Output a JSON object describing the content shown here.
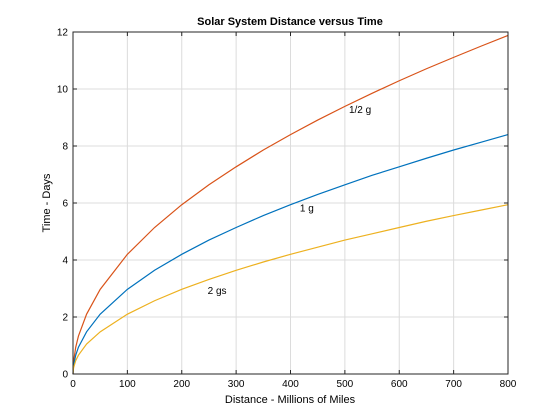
{
  "chart_data": {
    "type": "line",
    "title": "Solar System Distance versus Time",
    "xlabel": "Distance - Millions of Miles",
    "ylabel": "Time - Days",
    "xlim": [
      0,
      800
    ],
    "ylim": [
      0,
      12
    ],
    "x_ticks": [
      0,
      100,
      200,
      300,
      400,
      500,
      600,
      700,
      800
    ],
    "y_ticks": [
      0,
      2,
      4,
      6,
      8,
      10,
      12
    ],
    "grid": true,
    "x": [
      0,
      1,
      5,
      10,
      25,
      50,
      100,
      150,
      200,
      250,
      300,
      350,
      400,
      450,
      500,
      550,
      600,
      650,
      700,
      750,
      800
    ],
    "series": [
      {
        "name": "1/2 g",
        "color": "#d95319",
        "values": [
          0,
          0.42,
          0.94,
          1.33,
          2.1,
          2.97,
          4.2,
          5.14,
          5.94,
          6.64,
          7.27,
          7.86,
          8.4,
          8.91,
          9.39,
          9.85,
          10.29,
          10.71,
          11.11,
          11.5,
          11.88
        ]
      },
      {
        "name": "1 g",
        "color": "#0072bd",
        "values": [
          0,
          0.3,
          0.66,
          0.94,
          1.48,
          2.1,
          2.97,
          3.64,
          4.2,
          4.7,
          5.14,
          5.56,
          5.94,
          6.3,
          6.64,
          6.97,
          7.27,
          7.57,
          7.86,
          8.13,
          8.4
        ]
      },
      {
        "name": "2 gs",
        "color": "#edb120",
        "values": [
          0,
          0.21,
          0.47,
          0.66,
          1.05,
          1.48,
          2.1,
          2.57,
          2.97,
          3.32,
          3.64,
          3.93,
          4.2,
          4.45,
          4.7,
          4.92,
          5.14,
          5.36,
          5.56,
          5.75,
          5.94
        ]
      }
    ],
    "annotations": [
      {
        "text": "1/2 g",
        "x": 528,
        "y": 9.15
      },
      {
        "text": "1 g",
        "x": 430,
        "y": 5.7
      },
      {
        "text": "2 gs",
        "x": 265,
        "y": 2.8
      }
    ]
  }
}
